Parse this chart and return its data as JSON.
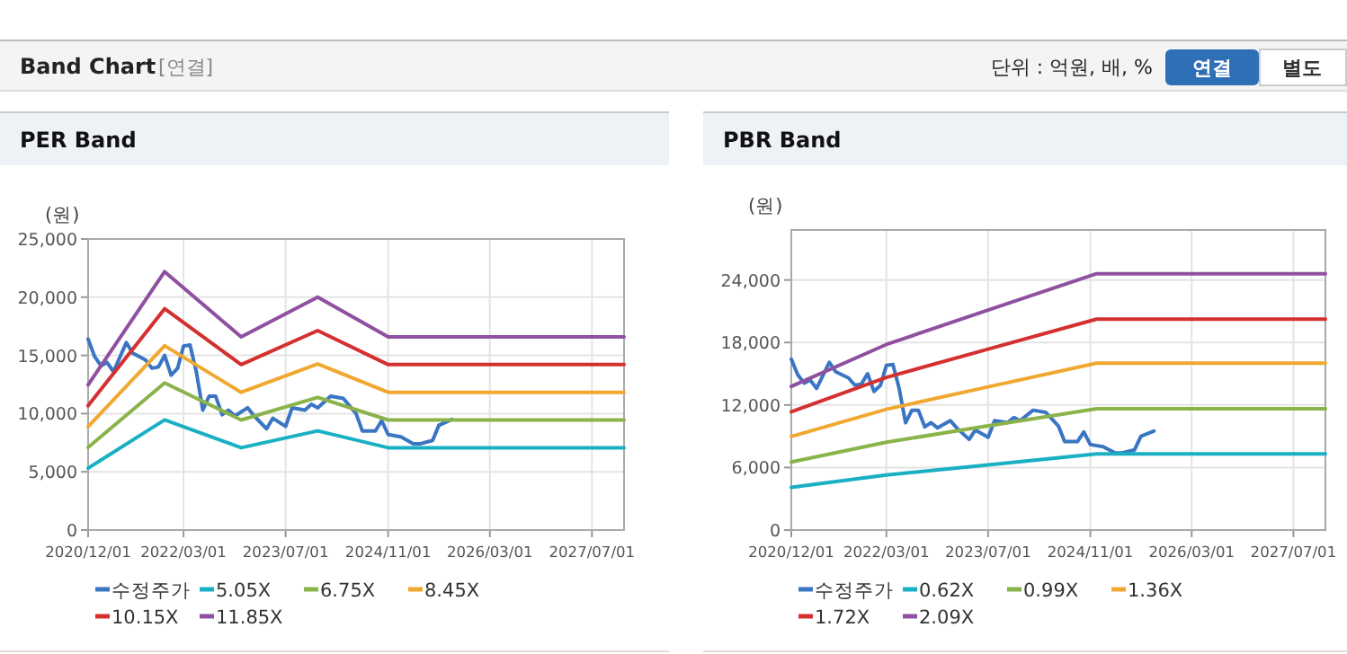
{
  "chart_data": [
    {
      "type": "other",
      "title": "Band Chart",
      "subtitle": "[연결]",
      "annotations": [
        "단위 : 억원, 배, %",
        "연결",
        "별도"
      ]
    },
    {
      "type": "line",
      "title": "PER Band",
      "ylabel": "(원)",
      "xlim": [
        "2020-12-01",
        "2027-12-01"
      ],
      "ylim": [
        0,
        25000
      ],
      "xticks": [
        {
          "value": "2020-12-01",
          "label": "2020/12/01"
        },
        {
          "value": "2022-03-01",
          "label": "2022/03/01"
        },
        {
          "value": "2023-07-01",
          "label": "2023/07/01"
        },
        {
          "value": "2024-11-01",
          "label": "2024/11/01"
        },
        {
          "value": "2026-03-01",
          "label": "2026/03/01"
        },
        {
          "value": "2027-07-01",
          "label": "2027/07/01"
        }
      ],
      "yticks": [
        {
          "value": 0,
          "label": "0"
        },
        {
          "value": 5000,
          "label": "5,000"
        },
        {
          "value": 10000,
          "label": "10,000"
        },
        {
          "value": 15000,
          "label": "15,000"
        },
        {
          "value": 20000,
          "label": "20,000"
        },
        {
          "value": 25000,
          "label": "25,000"
        }
      ],
      "grid": true,
      "legend": "bottom",
      "marker": "none",
      "line_style": "solid",
      "series": [
        {
          "name": "수정주가",
          "color": "#3a75c4",
          "x": [
            "2020-12-01",
            "2021-01-01",
            "2021-02-01",
            "2021-03-01",
            "2021-04-01",
            "2021-06-01",
            "2021-07-01",
            "2021-09-01",
            "2021-10-01",
            "2021-11-01",
            "2021-12-01",
            "2022-01-01",
            "2022-02-01",
            "2022-03-01",
            "2022-04-01",
            "2022-05-01",
            "2022-06-01",
            "2022-07-01",
            "2022-08-01",
            "2022-09-01",
            "2022-10-01",
            "2022-11-01",
            "2023-01-01",
            "2023-02-01",
            "2023-04-01",
            "2023-05-01",
            "2023-07-01",
            "2023-08-01",
            "2023-10-01",
            "2023-11-01",
            "2023-12-01",
            "2024-02-01",
            "2024-04-01",
            "2024-06-01",
            "2024-07-01",
            "2024-09-01",
            "2024-10-01",
            "2024-11-01",
            "2025-01-01",
            "2025-03-01",
            "2025-04-01",
            "2025-06-01",
            "2025-07-01",
            "2025-09-01"
          ],
          "values": [
            16400,
            14900,
            14100,
            14400,
            13600,
            16100,
            15200,
            14600,
            13900,
            14000,
            15000,
            13300,
            13900,
            15800,
            15900,
            13600,
            10300,
            11500,
            11500,
            9900,
            10300,
            9800,
            10500,
            9800,
            8700,
            9600,
            8900,
            10500,
            10300,
            10800,
            10500,
            11500,
            11300,
            10000,
            8500,
            8500,
            9400,
            8200,
            8000,
            7400,
            7400,
            7700,
            9000,
            9500
          ]
        },
        {
          "name": "5.05X",
          "color": "#1ab0c4",
          "x": [
            "2020-12-01",
            "2021-12-01",
            "2022-12-01",
            "2023-12-01",
            "2024-11-01",
            "2027-12-01"
          ],
          "values": [
            5310,
            9460,
            7070,
            8520,
            7070,
            7070
          ]
        },
        {
          "name": "6.75X",
          "color": "#8ab34a",
          "x": [
            "2020-12-01",
            "2021-12-01",
            "2022-12-01",
            "2023-12-01",
            "2024-11-01",
            "2027-12-01"
          ],
          "values": [
            7100,
            12640,
            9450,
            11390,
            9450,
            9450
          ]
        },
        {
          "name": "8.45X",
          "color": "#f0a830",
          "x": [
            "2020-12-01",
            "2021-12-01",
            "2022-12-01",
            "2023-12-01",
            "2024-11-01",
            "2027-12-01"
          ],
          "values": [
            8890,
            15830,
            11830,
            14260,
            11830,
            11830
          ]
        },
        {
          "name": "10.15X",
          "color": "#d43030",
          "x": [
            "2020-12-01",
            "2021-12-01",
            "2022-12-01",
            "2023-12-01",
            "2024-11-01",
            "2027-12-01"
          ],
          "values": [
            10680,
            19010,
            14210,
            17130,
            14210,
            14210
          ]
        },
        {
          "name": "11.85X",
          "color": "#9050a0",
          "x": [
            "2020-12-01",
            "2021-12-01",
            "2022-12-01",
            "2023-12-01",
            "2024-11-01",
            "2027-12-01"
          ],
          "values": [
            12470,
            22190,
            16590,
            20000,
            16590,
            16590
          ]
        }
      ]
    },
    {
      "type": "line",
      "title": "PBR Band",
      "ylabel": "(원)",
      "xlim": [
        "2020-12-01",
        "2027-12-01"
      ],
      "ylim": [
        0,
        28800
      ],
      "xticks": [
        {
          "value": "2020-12-01",
          "label": "2020/12/01"
        },
        {
          "value": "2022-03-01",
          "label": "2022/03/01"
        },
        {
          "value": "2023-07-01",
          "label": "2023/07/01"
        },
        {
          "value": "2024-11-01",
          "label": "2024/11/01"
        },
        {
          "value": "2026-03-01",
          "label": "2026/03/01"
        },
        {
          "value": "2027-07-01",
          "label": "2027/07/01"
        }
      ],
      "yticks": [
        {
          "value": 0,
          "label": "0"
        },
        {
          "value": 6000,
          "label": "6,000"
        },
        {
          "value": 12000,
          "label": "12,000"
        },
        {
          "value": 18000,
          "label": "18,000"
        },
        {
          "value": 24000,
          "label": "24,000"
        }
      ],
      "grid": true,
      "legend": "bottom",
      "marker": "none",
      "line_style": "solid",
      "series": [
        {
          "name": "수정주가",
          "color": "#3a75c4",
          "x": [
            "2020-12-01",
            "2021-01-01",
            "2021-02-01",
            "2021-03-01",
            "2021-04-01",
            "2021-06-01",
            "2021-07-01",
            "2021-09-01",
            "2021-10-01",
            "2021-11-01",
            "2021-12-01",
            "2022-01-01",
            "2022-02-01",
            "2022-03-01",
            "2022-04-01",
            "2022-05-01",
            "2022-06-01",
            "2022-07-01",
            "2022-08-01",
            "2022-09-01",
            "2022-10-01",
            "2022-11-01",
            "2023-01-01",
            "2023-02-01",
            "2023-04-01",
            "2023-05-01",
            "2023-07-01",
            "2023-08-01",
            "2023-10-01",
            "2023-11-01",
            "2023-12-01",
            "2024-02-01",
            "2024-04-01",
            "2024-06-01",
            "2024-07-01",
            "2024-09-01",
            "2024-10-01",
            "2024-11-01",
            "2025-01-01",
            "2025-03-01",
            "2025-04-01",
            "2025-06-01",
            "2025-07-01",
            "2025-09-01"
          ],
          "values": [
            16400,
            14900,
            14100,
            14400,
            13600,
            16100,
            15200,
            14600,
            13900,
            14000,
            15000,
            13300,
            13900,
            15800,
            15900,
            13600,
            10300,
            11500,
            11500,
            9900,
            10300,
            9800,
            10500,
            9800,
            8700,
            9600,
            8900,
            10500,
            10300,
            10800,
            10500,
            11500,
            11300,
            10000,
            8500,
            8500,
            9400,
            8200,
            8000,
            7400,
            7400,
            7700,
            9000,
            9500
          ]
        },
        {
          "name": "0.62X",
          "color": "#1ab0c4",
          "x": [
            "2020-12-01",
            "2022-03-01",
            "2023-07-01",
            "2024-12-01",
            "2027-12-01"
          ],
          "values": [
            4090,
            5280,
            6260,
            7300,
            7300
          ]
        },
        {
          "name": "0.99X",
          "color": "#8ab34a",
          "x": [
            "2020-12-01",
            "2022-03-01",
            "2023-07-01",
            "2024-12-01",
            "2027-12-01"
          ],
          "values": [
            6530,
            8430,
            10000,
            11650,
            11650
          ]
        },
        {
          "name": "1.36X",
          "color": "#f0a830",
          "x": [
            "2020-12-01",
            "2022-03-01",
            "2023-07-01",
            "2024-12-01",
            "2027-12-01"
          ],
          "values": [
            8980,
            11590,
            13740,
            16010,
            16010
          ]
        },
        {
          "name": "1.72X",
          "color": "#d43030",
          "x": [
            "2020-12-01",
            "2022-03-01",
            "2023-07-01",
            "2024-12-01",
            "2027-12-01"
          ],
          "values": [
            11350,
            14650,
            17370,
            20240,
            20240
          ]
        },
        {
          "name": "2.09X",
          "color": "#9050a0",
          "x": [
            "2020-12-01",
            "2022-03-01",
            "2023-07-01",
            "2024-12-01",
            "2027-12-01"
          ],
          "values": [
            13790,
            17810,
            21110,
            24600,
            24600
          ]
        }
      ]
    }
  ]
}
